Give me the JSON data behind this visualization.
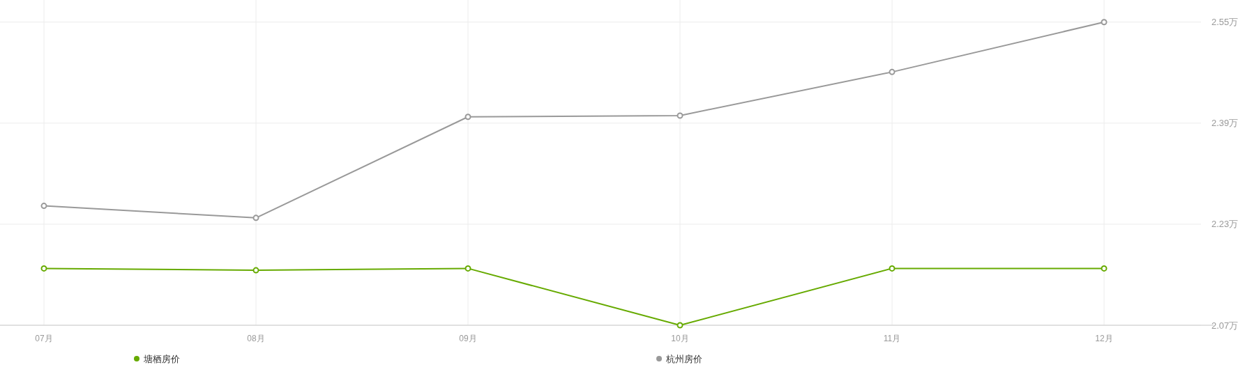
{
  "chart_data": {
    "type": "line",
    "categories": [
      "07月",
      "08月",
      "09月",
      "10月",
      "11月",
      "12月"
    ],
    "series": [
      {
        "name": "塘栖房价",
        "color": "#66aa00",
        "values": [
          2.16,
          2.157,
          2.16,
          2.07,
          2.16,
          2.16
        ]
      },
      {
        "name": "杭州房价",
        "color": "#999999",
        "values": [
          2.259,
          2.24,
          2.4,
          2.402,
          2.471,
          2.55
        ]
      }
    ],
    "ylim": [
      2.07,
      2.585
    ],
    "yticks": [
      {
        "value": 2.07,
        "label": "2.07万"
      },
      {
        "value": 2.23,
        "label": "2.23万"
      },
      {
        "value": 2.39,
        "label": "2.39万"
      },
      {
        "value": 2.55,
        "label": "2.55万"
      }
    ],
    "grid": true,
    "legend": "bottom",
    "marker": "circle",
    "line_style": "solid"
  }
}
